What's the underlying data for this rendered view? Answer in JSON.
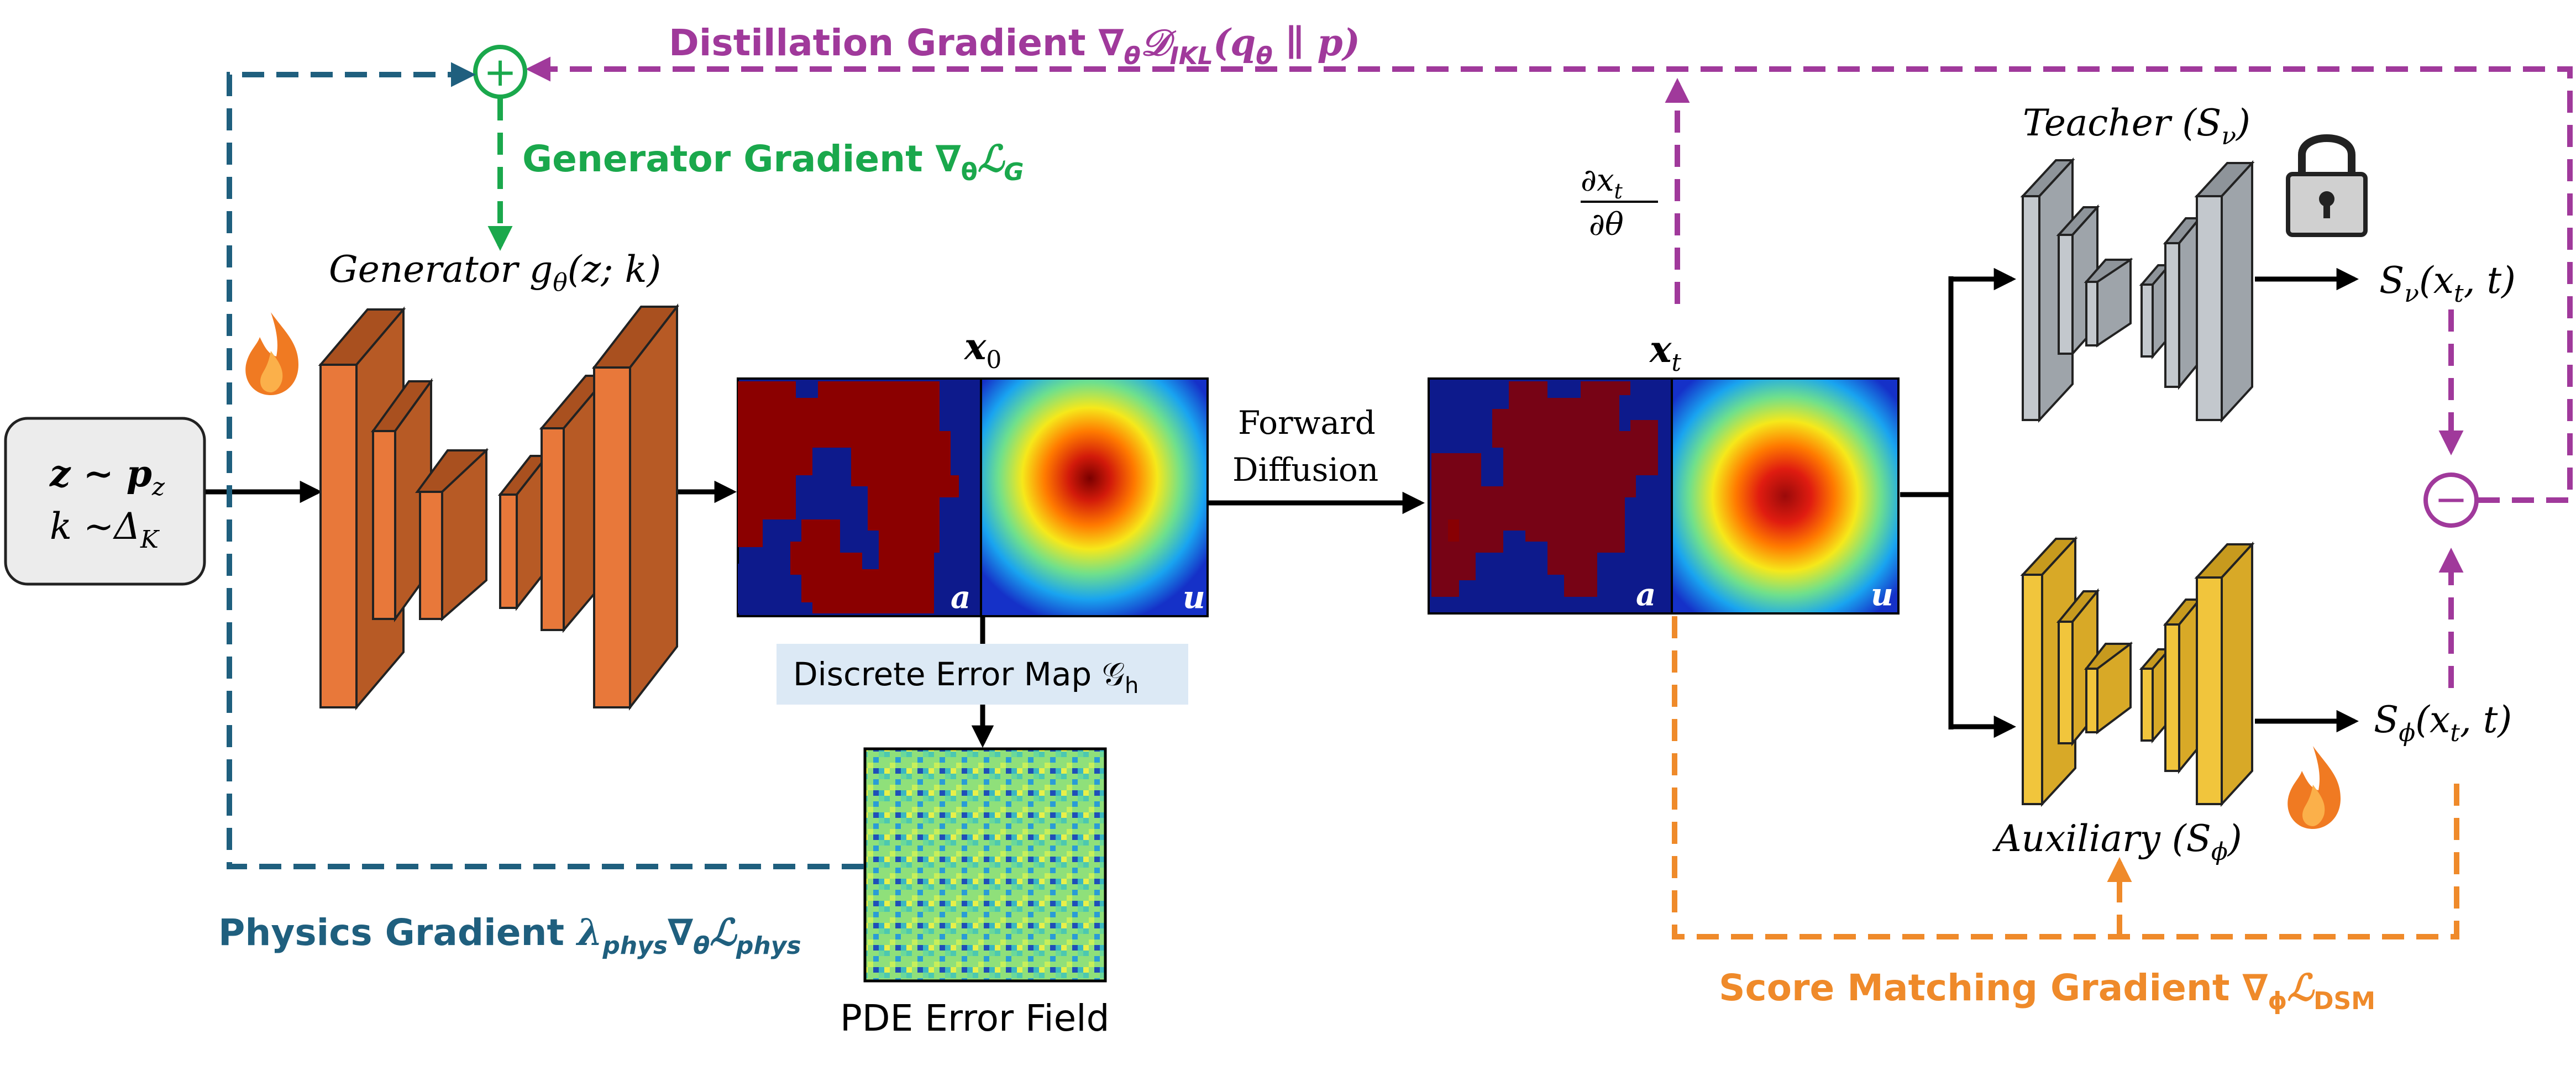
{
  "labels": {
    "input_line1": "z ∼ p",
    "input_line1_sub": "z",
    "input_line2": "k ∼Δ",
    "input_line2_sub": "K",
    "generator": "Generator g",
    "generator_sub": "θ",
    "generator_args": "(z; k)",
    "x0": "x",
    "x0_sub": "0",
    "xt": "x",
    "xt_sub": "t",
    "field_a": "a",
    "field_u": "u",
    "forward_diffusion_1": "Forward",
    "forward_diffusion_2": "Diffusion",
    "error_map": "Discrete Error Map 𝒢",
    "error_map_sub": "h",
    "pde_error_field": "PDE Error Field",
    "teacher": "Teacher (S",
    "teacher_sub": "ν",
    "teacher_close": ")",
    "auxiliary": "Auxiliary (S",
    "auxiliary_sub": "ϕ",
    "auxiliary_close": ")",
    "teacher_output": "S",
    "teacher_output_sub": "ν",
    "teacher_output_args": "(x",
    "teacher_output_args_sub": "t",
    "teacher_output_tail": ", t)",
    "aux_output": "S",
    "aux_output_sub": "ϕ",
    "aux_output_args": "(x",
    "aux_output_args_sub": "t",
    "aux_output_tail": ", t)",
    "partial_num": "∂x",
    "partial_num_sub": "t",
    "partial_den": "∂θ",
    "distillation_gradient": "Distillation Gradient ∇",
    "distillation_gradient_sub": "θ",
    "distillation_gradient_math": "𝒟",
    "distillation_gradient_math_sub": "IKL",
    "distillation_gradient_args": "(q",
    "distillation_gradient_args_sub": "θ",
    "distillation_gradient_tail": " ∥ p)",
    "generator_gradient": "Generator Gradient ∇",
    "generator_gradient_sub": "θ",
    "generator_gradient_math": "ℒ",
    "generator_gradient_math_sub": "G",
    "physics_gradient": "Physics Gradient ",
    "physics_gradient_math": "λ",
    "physics_gradient_math_sub": "phys",
    "physics_gradient_math2": "∇",
    "physics_gradient_math2_sub": "θ",
    "physics_gradient_math3": "ℒ",
    "physics_gradient_math3_sub": "phys",
    "score_gradient": "Score Matching Gradient ∇",
    "score_gradient_sub": "ϕ",
    "score_gradient_math": "ℒ",
    "score_gradient_math_sub": "DSM",
    "plus_symbol": "+",
    "minus_symbol": "−"
  },
  "colors": {
    "distillation": "#a0399b",
    "generator_grad": "#1aa84c",
    "physics": "#1f5f7e",
    "score": "#ef8a2a",
    "generator_block": "#e8783a",
    "teacher_block": "#b9bec4",
    "aux_block": "#f1c53c",
    "arrow": "#000000"
  },
  "icons": [
    "fire-icon",
    "lock-icon",
    "plus-circle-icon",
    "minus-circle-icon"
  ]
}
